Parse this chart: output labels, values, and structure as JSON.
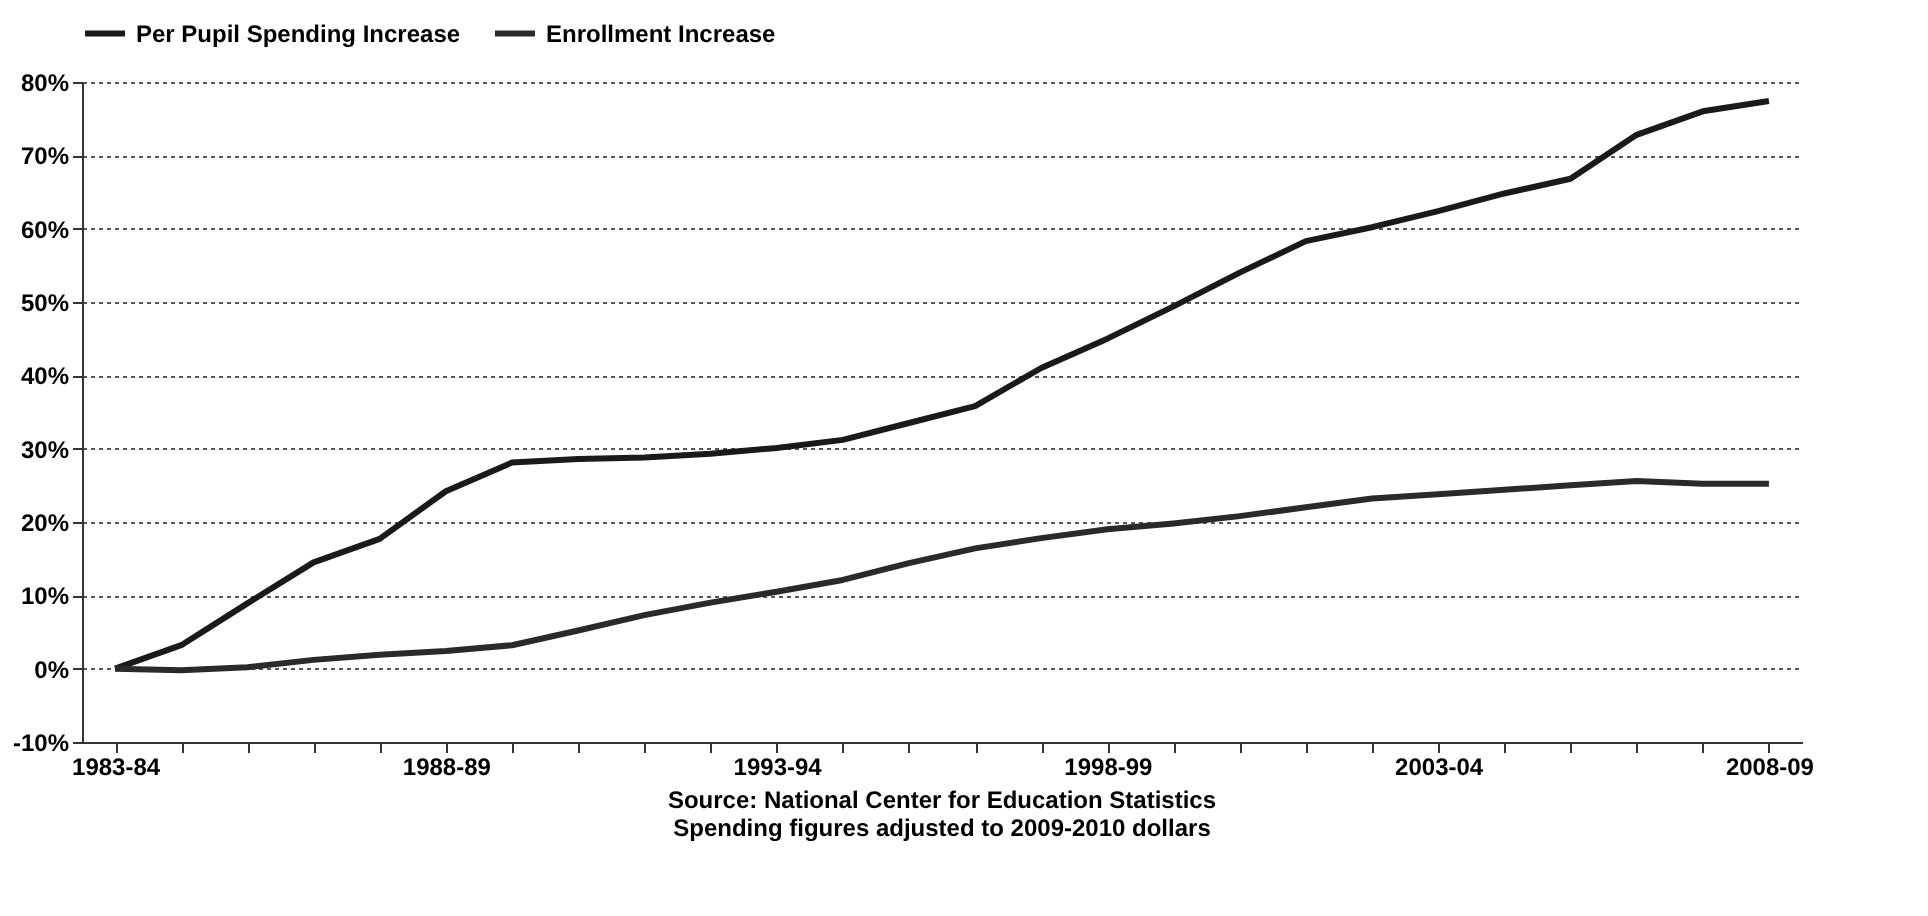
{
  "chart_data": {
    "type": "line",
    "categories": [
      "1983-84",
      null,
      null,
      null,
      null,
      "1988-89",
      null,
      null,
      null,
      null,
      "1993-94",
      null,
      null,
      null,
      null,
      "1998-99",
      null,
      null,
      null,
      null,
      "2003-04",
      null,
      null,
      null,
      null,
      "2008-09"
    ],
    "series": [
      {
        "name": "Per Pupil Spending Increase",
        "color": "#1a1a1a",
        "values": [
          0,
          3.2,
          8.9,
          14.5,
          17.7,
          24.2,
          28.1,
          28.6,
          28.8,
          29.3,
          30.1,
          31.2,
          33.5,
          35.8,
          41.0,
          45.0,
          49.4,
          54.0,
          58.3,
          60.2,
          62.4,
          64.8,
          66.8,
          72.8,
          76.0,
          77.4
        ]
      },
      {
        "name": "Enrollment Increase",
        "color": "#2a2a2a",
        "values": [
          0,
          -0.2,
          0.2,
          1.2,
          1.9,
          2.4,
          3.2,
          5.2,
          7.3,
          9.0,
          10.5,
          12.1,
          14.4,
          16.4,
          17.8,
          19.0,
          19.8,
          20.8,
          22.0,
          23.2,
          23.8,
          24.4,
          25.0,
          25.6,
          25.2,
          25.2
        ]
      }
    ],
    "ylim": [
      -10,
      80
    ],
    "yticks": [
      {
        "value": -10,
        "label": "-10%"
      },
      {
        "value": 0,
        "label": "0%"
      },
      {
        "value": 10,
        "label": "10%"
      },
      {
        "value": 20,
        "label": "20%"
      },
      {
        "value": 30,
        "label": "30%"
      },
      {
        "value": 40,
        "label": "40%"
      },
      {
        "value": 50,
        "label": "50%"
      },
      {
        "value": 60,
        "label": "60%"
      },
      {
        "value": 70,
        "label": "70%"
      },
      {
        "value": 80,
        "label": "80%"
      }
    ],
    "grid": "y",
    "legend": "top",
    "marker": "none",
    "line_style": "solid",
    "annotations": [
      "Source: National Center for Education Statistics",
      "Spending figures adjusted to 2009-2010 dollars"
    ]
  }
}
